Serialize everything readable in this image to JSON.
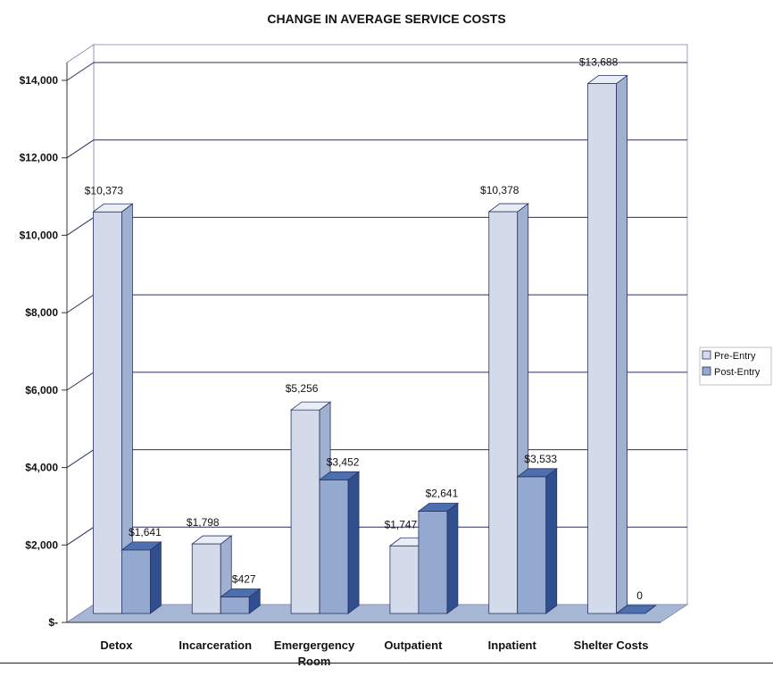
{
  "chart_data": {
    "type": "bar",
    "title": "CHANGE IN AVERAGE SERVICE COSTS",
    "categories": [
      [
        "Detox"
      ],
      [
        "Incarceration"
      ],
      [
        "Emergergency",
        "Room"
      ],
      [
        "Outpatient"
      ],
      [
        "Inpatient"
      ],
      [
        "Shelter Costs"
      ]
    ],
    "series": [
      {
        "name": "Pre-Entry",
        "values": [
          10373,
          1798,
          5256,
          1747,
          10378,
          13688
        ],
        "labels": [
          "$10,373",
          "$1,798",
          "$5,256",
          "$1,747",
          "$10,378",
          "$13,688"
        ]
      },
      {
        "name": "Post-Entry",
        "values": [
          1641,
          427,
          3452,
          2641,
          3533,
          0
        ],
        "labels": [
          "$1,641",
          "$427",
          "$3,452",
          "$2,641",
          "$3,533",
          "0"
        ]
      }
    ],
    "y_ticks": [
      0,
      2000,
      4000,
      6000,
      8000,
      10000,
      12000,
      14000
    ],
    "y_tick_labels": [
      "$-",
      "$2,000",
      "$4,000",
      "$6,000",
      "$8,000",
      "$10,000",
      "$12,000",
      "$14,000"
    ],
    "ylim": [
      0,
      14000
    ],
    "grid": true,
    "legend": "right",
    "colors": {
      "pre_front": "#d3dbea",
      "pre_side": "#9fb0d0",
      "pre_top": "#e8edf6",
      "post_front": "#93a9d0",
      "post_side": "#2f4f8f",
      "post_top": "#4d6fb0",
      "floor": "#a8b6d6",
      "wall": "#ffffff",
      "grid": "#2b2f5a"
    }
  }
}
